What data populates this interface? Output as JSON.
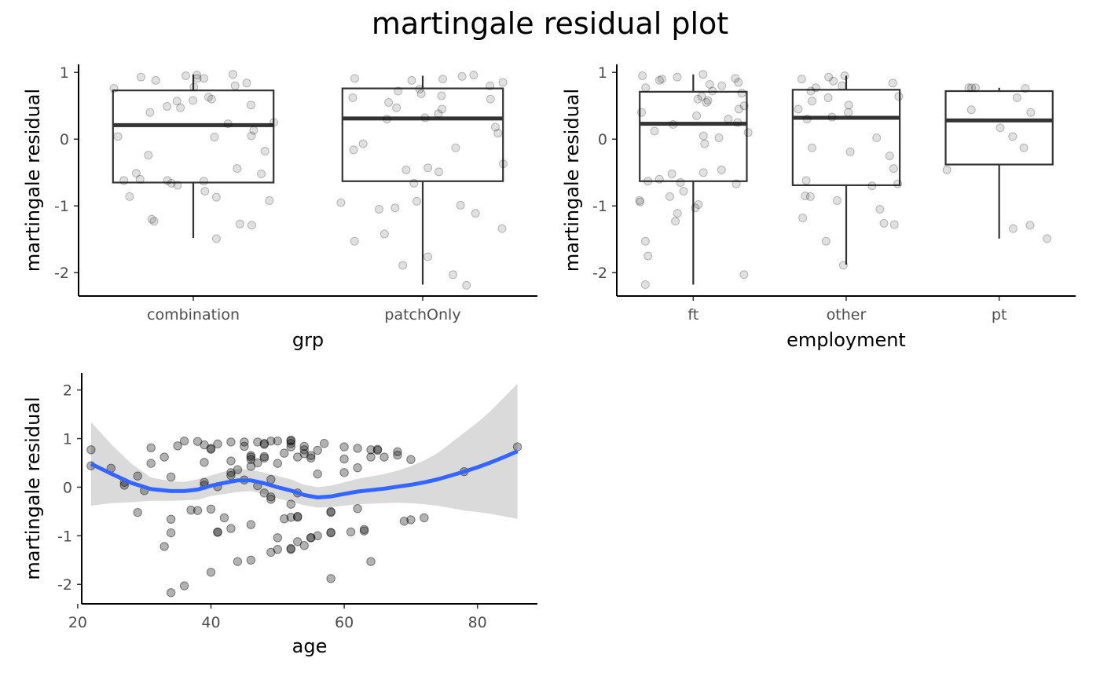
{
  "title": "martingale residual plot",
  "colors": {
    "axis": "#000000",
    "box": "#333333",
    "point": "#000000",
    "smooth": "#3366FF",
    "band": "#D3D3D3"
  },
  "chart_data": [
    {
      "id": "grp",
      "type": "box",
      "xlabel": "grp",
      "ylabel": "martingale residual",
      "ylim": [
        -2.35,
        1.12
      ],
      "yticks": [
        1,
        0,
        -1,
        -2
      ],
      "ytick_labels": [
        "1",
        "0",
        "-1",
        "-2"
      ],
      "categories": [
        "combination",
        "patchOnly"
      ],
      "boxes": [
        {
          "category": "combination",
          "whisker_low": -1.48,
          "q1": -0.65,
          "median": 0.21,
          "q3": 0.73,
          "whisker_high": 0.97
        },
        {
          "category": "patchOnly",
          "whisker_low": -2.18,
          "q1": -0.63,
          "median": 0.31,
          "q3": 0.76,
          "whisker_high": 0.95
        }
      ],
      "points": [
        [
          0,
          0.93
        ],
        [
          0,
          0.97
        ],
        [
          0,
          0.91
        ],
        [
          0,
          0.95
        ],
        [
          0,
          0.88
        ],
        [
          0,
          0.84
        ],
        [
          0,
          0.8
        ],
        [
          0,
          0.78
        ],
        [
          0,
          0.91
        ],
        [
          0,
          0.96
        ],
        [
          0,
          0.76
        ],
        [
          0,
          0.63
        ],
        [
          0,
          0.6
        ],
        [
          0,
          0.57
        ],
        [
          0,
          0.51
        ],
        [
          0,
          0.49
        ],
        [
          0,
          0.47
        ],
        [
          0,
          0.4
        ],
        [
          0,
          0.25
        ],
        [
          0,
          0.23
        ],
        [
          0,
          0.13
        ],
        [
          0,
          0.05
        ],
        [
          0,
          0.04
        ],
        [
          0,
          0.03
        ],
        [
          0,
          -0.18
        ],
        [
          0,
          -0.24
        ],
        [
          0,
          -0.44
        ],
        [
          0,
          -0.51
        ],
        [
          0,
          -0.52
        ],
        [
          0,
          -0.6
        ],
        [
          0,
          -0.62
        ],
        [
          0,
          -0.63
        ],
        [
          0,
          -0.66
        ],
        [
          0,
          -0.69
        ],
        [
          0,
          -0.78
        ],
        [
          0,
          -0.86
        ],
        [
          0,
          -0.87
        ],
        [
          0,
          -0.92
        ],
        [
          0,
          -1.2
        ],
        [
          0,
          -1.23
        ],
        [
          0,
          -1.27
        ],
        [
          0,
          -1.29
        ],
        [
          0,
          -1.49
        ],
        [
          0,
          -0.62
        ],
        [
          0,
          0.58
        ],
        [
          1,
          0.96
        ],
        [
          1,
          0.94
        ],
        [
          1,
          0.91
        ],
        [
          1,
          0.88
        ],
        [
          1,
          0.85
        ],
        [
          1,
          0.8
        ],
        [
          1,
          0.75
        ],
        [
          1,
          0.72
        ],
        [
          1,
          0.68
        ],
        [
          1,
          0.62
        ],
        [
          1,
          0.6
        ],
        [
          1,
          0.55
        ],
        [
          1,
          0.47
        ],
        [
          1,
          0.45
        ],
        [
          1,
          0.38
        ],
        [
          1,
          0.32
        ],
        [
          1,
          0.3
        ],
        [
          1,
          0.18
        ],
        [
          1,
          0.09
        ],
        [
          1,
          -0.07
        ],
        [
          1,
          -0.13
        ],
        [
          1,
          -0.16
        ],
        [
          1,
          -0.37
        ],
        [
          1,
          -0.43
        ],
        [
          1,
          -0.46
        ],
        [
          1,
          -0.49
        ],
        [
          1,
          -0.66
        ],
        [
          1,
          -0.93
        ],
        [
          1,
          -0.95
        ],
        [
          1,
          -0.99
        ],
        [
          1,
          -1.03
        ],
        [
          1,
          -1.05
        ],
        [
          1,
          -1.11
        ],
        [
          1,
          -1.34
        ],
        [
          1,
          -1.42
        ],
        [
          1,
          -1.53
        ],
        [
          1,
          -1.76
        ],
        [
          1,
          -1.89
        ],
        [
          1,
          -2.03
        ],
        [
          1,
          -2.19
        ],
        [
          1,
          0.9
        ],
        [
          1,
          0.65
        ]
      ]
    },
    {
      "id": "employment",
      "type": "box",
      "xlabel": "employment",
      "ylabel": "martingale residual",
      "ylim": [
        -2.35,
        1.12
      ],
      "yticks": [
        1,
        0,
        -1,
        -2
      ],
      "ytick_labels": [
        "1",
        "0",
        "-1",
        "-2"
      ],
      "categories": [
        "ft",
        "other",
        "pt"
      ],
      "boxes": [
        {
          "category": "ft",
          "whisker_low": -2.18,
          "q1": -0.63,
          "median": 0.23,
          "q3": 0.71,
          "whisker_high": 0.97
        },
        {
          "category": "other",
          "whisker_low": -1.88,
          "q1": -0.69,
          "median": 0.32,
          "q3": 0.74,
          "whisker_high": 0.95
        },
        {
          "category": "pt",
          "whisker_low": -1.49,
          "q1": -0.38,
          "median": 0.28,
          "q3": 0.72,
          "whisker_high": 0.77
        }
      ],
      "points": [
        [
          0,
          0.97
        ],
        [
          0,
          0.95
        ],
        [
          0,
          0.93
        ],
        [
          0,
          0.91
        ],
        [
          0,
          0.88
        ],
        [
          0,
          0.85
        ],
        [
          0,
          0.82
        ],
        [
          0,
          0.8
        ],
        [
          0,
          0.77
        ],
        [
          0,
          0.72
        ],
        [
          0,
          0.69
        ],
        [
          0,
          0.64
        ],
        [
          0,
          0.6
        ],
        [
          0,
          0.58
        ],
        [
          0,
          0.55
        ],
        [
          0,
          0.5
        ],
        [
          0,
          0.45
        ],
        [
          0,
          0.4
        ],
        [
          0,
          0.3
        ],
        [
          0,
          0.25
        ],
        [
          0,
          0.22
        ],
        [
          0,
          0.12
        ],
        [
          0,
          0.1
        ],
        [
          0,
          0.05
        ],
        [
          0,
          0.02
        ],
        [
          0,
          -0.07
        ],
        [
          0,
          -0.46
        ],
        [
          0,
          -0.5
        ],
        [
          0,
          -0.52
        ],
        [
          0,
          -0.6
        ],
        [
          0,
          -0.63
        ],
        [
          0,
          -0.65
        ],
        [
          0,
          -0.67
        ],
        [
          0,
          -0.78
        ],
        [
          0,
          -0.86
        ],
        [
          0,
          -0.92
        ],
        [
          0,
          -0.94
        ],
        [
          0,
          -0.98
        ],
        [
          0,
          -1.03
        ],
        [
          0,
          -1.11
        ],
        [
          0,
          -1.23
        ],
        [
          0,
          -1.53
        ],
        [
          0,
          -1.75
        ],
        [
          0,
          -2.03
        ],
        [
          0,
          -2.18
        ],
        [
          0,
          0.9
        ],
        [
          0,
          0.35
        ],
        [
          1,
          0.95
        ],
        [
          1,
          0.93
        ],
        [
          1,
          0.9
        ],
        [
          1,
          0.87
        ],
        [
          1,
          0.84
        ],
        [
          1,
          0.8
        ],
        [
          1,
          0.77
        ],
        [
          1,
          0.72
        ],
        [
          1,
          0.64
        ],
        [
          1,
          0.62
        ],
        [
          1,
          0.57
        ],
        [
          1,
          0.51
        ],
        [
          1,
          0.45
        ],
        [
          1,
          0.4
        ],
        [
          1,
          0.33
        ],
        [
          1,
          0.3
        ],
        [
          1,
          0.02
        ],
        [
          1,
          -0.13
        ],
        [
          1,
          -0.19
        ],
        [
          1,
          -0.25
        ],
        [
          1,
          -0.44
        ],
        [
          1,
          -0.62
        ],
        [
          1,
          -0.67
        ],
        [
          1,
          -0.7
        ],
        [
          1,
          -0.85
        ],
        [
          1,
          -0.86
        ],
        [
          1,
          -0.92
        ],
        [
          1,
          -1.05
        ],
        [
          1,
          -1.18
        ],
        [
          1,
          -1.26
        ],
        [
          1,
          -1.28
        ],
        [
          1,
          -1.53
        ],
        [
          1,
          -1.89
        ],
        [
          2,
          0.77
        ],
        [
          2,
          0.77
        ],
        [
          2,
          0.77
        ],
        [
          2,
          0.76
        ],
        [
          2,
          0.62
        ],
        [
          2,
          0.44
        ],
        [
          2,
          0.4
        ],
        [
          2,
          0.17
        ],
        [
          2,
          0.04
        ],
        [
          2,
          -0.13
        ],
        [
          2,
          -0.46
        ],
        [
          2,
          -1.29
        ],
        [
          2,
          -1.34
        ],
        [
          2,
          -1.49
        ]
      ]
    },
    {
      "id": "age",
      "type": "scatter",
      "xlabel": "age",
      "ylabel": "martingale residual",
      "xlim": [
        20.6,
        89
      ],
      "ylim": [
        -2.4,
        2.35
      ],
      "xticks": [
        20,
        40,
        60,
        80
      ],
      "xtick_labels": [
        "20",
        "40",
        "60",
        "80"
      ],
      "yticks": [
        2,
        1,
        0,
        -1,
        -2
      ],
      "ytick_labels": [
        "2",
        "1",
        "0",
        "-1",
        "-2"
      ],
      "points": [
        [
          22,
          0.77
        ],
        [
          22,
          0.44
        ],
        [
          25,
          0.39
        ],
        [
          27,
          0.1
        ],
        [
          27,
          0.04
        ],
        [
          29,
          0.23
        ],
        [
          29,
          -0.52
        ],
        [
          30,
          -0.07
        ],
        [
          31,
          0.81
        ],
        [
          31,
          0.49
        ],
        [
          33,
          0.62
        ],
        [
          33,
          -1.22
        ],
        [
          34,
          0.21
        ],
        [
          34,
          -0.66
        ],
        [
          34,
          -0.94
        ],
        [
          34,
          -2.17
        ],
        [
          35,
          0.85
        ],
        [
          36,
          0.95
        ],
        [
          36,
          -2.03
        ],
        [
          37,
          -0.47
        ],
        [
          38,
          0.94
        ],
        [
          38,
          -0.48
        ],
        [
          39,
          0.87
        ],
        [
          39,
          0.51
        ],
        [
          39,
          0.1
        ],
        [
          39,
          0.04
        ],
        [
          40,
          0.8
        ],
        [
          40,
          0.78
        ],
        [
          40,
          -0.45
        ],
        [
          40,
          -1.75
        ],
        [
          41,
          0.89
        ],
        [
          41,
          0.01
        ],
        [
          41,
          -0.92
        ],
        [
          41,
          -0.93
        ],
        [
          42,
          -0.63
        ],
        [
          43,
          0.93
        ],
        [
          43,
          0.54
        ],
        [
          43,
          0.3
        ],
        [
          43,
          0.24
        ],
        [
          43,
          -0.85
        ],
        [
          44,
          0.36
        ],
        [
          44,
          -1.53
        ],
        [
          45,
          0.93
        ],
        [
          45,
          0.84
        ],
        [
          45,
          0.15
        ],
        [
          46,
          0.65
        ],
        [
          46,
          0.62
        ],
        [
          46,
          0.57
        ],
        [
          46,
          0.43
        ],
        [
          46,
          -0.77
        ],
        [
          46,
          -1.5
        ],
        [
          47,
          0.93
        ],
        [
          47,
          0.5
        ],
        [
          47,
          0.03
        ],
        [
          48,
          0.9
        ],
        [
          48,
          0.88
        ],
        [
          48,
          0.63
        ],
        [
          48,
          0.6
        ],
        [
          48,
          -0.12
        ],
        [
          49,
          0.95
        ],
        [
          49,
          0.16
        ],
        [
          49,
          -0.2
        ],
        [
          49,
          -0.25
        ],
        [
          49,
          -1.34
        ],
        [
          50,
          0.95
        ],
        [
          50,
          0.49
        ],
        [
          50,
          -1.04
        ],
        [
          50,
          -1.28
        ],
        [
          51,
          0.7
        ],
        [
          51,
          -0.65
        ],
        [
          52,
          0.97
        ],
        [
          52,
          0.95
        ],
        [
          52,
          0.9
        ],
        [
          52,
          0.83
        ],
        [
          52,
          -0.35
        ],
        [
          52,
          -0.62
        ],
        [
          52,
          -1.26
        ],
        [
          52,
          -1.28
        ],
        [
          53,
          0.62
        ],
        [
          53,
          -0.12
        ],
        [
          53,
          -0.6
        ],
        [
          53,
          -0.62
        ],
        [
          53,
          -1.12
        ],
        [
          54,
          0.84
        ],
        [
          54,
          0.77
        ],
        [
          54,
          0.69
        ],
        [
          54,
          -1.2
        ],
        [
          55,
          0.65
        ],
        [
          55,
          0.6
        ],
        [
          55,
          -1.04
        ],
        [
          55,
          -1.04
        ],
        [
          56,
          0.76
        ],
        [
          56,
          0.27
        ],
        [
          56,
          -1.0
        ],
        [
          57,
          0.9
        ],
        [
          58,
          -0.5
        ],
        [
          58,
          -0.52
        ],
        [
          58,
          -0.93
        ],
        [
          58,
          -0.94
        ],
        [
          58,
          -1.88
        ],
        [
          60,
          0.83
        ],
        [
          60,
          0.58
        ],
        [
          60,
          0.3
        ],
        [
          61,
          -0.92
        ],
        [
          62,
          0.8
        ],
        [
          62,
          0.4
        ],
        [
          62,
          -0.44
        ],
        [
          63,
          -0.87
        ],
        [
          63,
          -0.9
        ],
        [
          64,
          0.77
        ],
        [
          64,
          0.62
        ],
        [
          64,
          -1.53
        ],
        [
          65,
          0.78
        ],
        [
          65,
          0.76
        ],
        [
          66,
          0.62
        ],
        [
          68,
          0.73
        ],
        [
          68,
          0.66
        ],
        [
          69,
          -0.7
        ],
        [
          70,
          0.57
        ],
        [
          70,
          -0.67
        ],
        [
          72,
          -0.63
        ],
        [
          78,
          0.32
        ],
        [
          86,
          0.83
        ]
      ],
      "smooth": {
        "x": [
          22,
          25,
          28,
          31,
          34,
          36,
          38,
          40,
          42,
          44,
          46,
          48,
          50,
          52,
          54,
          56,
          58,
          60,
          62,
          64,
          66,
          68,
          70,
          72,
          74,
          76,
          78,
          80,
          82,
          84,
          86
        ],
        "y": [
          0.48,
          0.28,
          0.09,
          -0.04,
          -0.08,
          -0.08,
          -0.05,
          0.03,
          0.09,
          0.14,
          0.14,
          0.08,
          0.0,
          -0.07,
          -0.16,
          -0.21,
          -0.19,
          -0.14,
          -0.09,
          -0.06,
          -0.03,
          0.01,
          0.05,
          0.1,
          0.16,
          0.24,
          0.32,
          0.41,
          0.51,
          0.62,
          0.74
        ],
        "lower": [
          -0.38,
          -0.33,
          -0.31,
          -0.28,
          -0.28,
          -0.27,
          -0.26,
          -0.18,
          -0.14,
          -0.1,
          -0.08,
          -0.14,
          -0.23,
          -0.3,
          -0.37,
          -0.42,
          -0.41,
          -0.38,
          -0.35,
          -0.34,
          -0.33,
          -0.32,
          -0.33,
          -0.35,
          -0.38,
          -0.43,
          -0.48,
          -0.51,
          -0.55,
          -0.6,
          -0.65
        ],
        "upper": [
          1.34,
          0.89,
          0.49,
          0.2,
          0.12,
          0.11,
          0.16,
          0.24,
          0.32,
          0.38,
          0.36,
          0.3,
          0.23,
          0.16,
          0.05,
          -0.0,
          0.03,
          0.1,
          0.17,
          0.22,
          0.27,
          0.34,
          0.43,
          0.55,
          0.7,
          0.91,
          1.12,
          1.33,
          1.57,
          1.85,
          2.13
        ]
      }
    }
  ]
}
